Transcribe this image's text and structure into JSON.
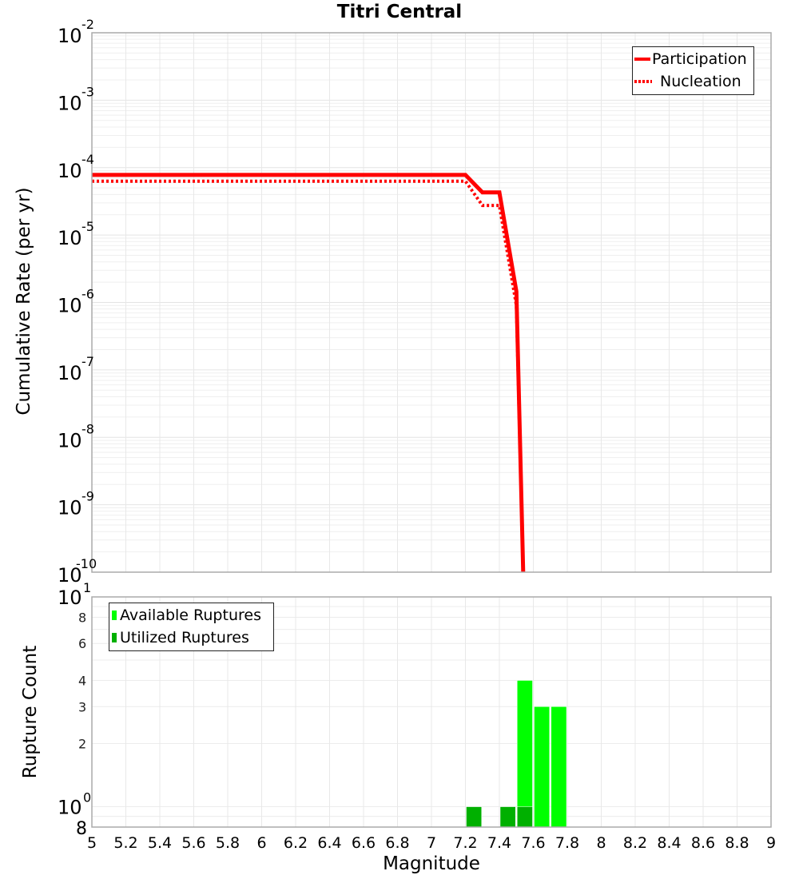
{
  "title": "Titri Central",
  "top_chart": {
    "ylabel": "Cumulative Rate (per yr)",
    "legend": [
      {
        "label": "Participation",
        "style": "solid",
        "color": "#ff0000"
      },
      {
        "label": "Nucleation",
        "style": "dotted",
        "color": "#ff0000"
      }
    ]
  },
  "bottom_chart": {
    "ylabel": "Rupture Count",
    "legend": [
      {
        "label": "Available Ruptures",
        "color": "#00ff00"
      },
      {
        "label": "Utilized Ruptures",
        "color": "#00b000"
      }
    ]
  },
  "xlabel": "Magnitude",
  "chart_data": [
    {
      "type": "line",
      "title": "Titri Central",
      "xlabel": "Magnitude",
      "ylabel": "Cumulative Rate (per yr)",
      "xlim": [
        5,
        9
      ],
      "ylim": [
        1e-10,
        0.01
      ],
      "yscale": "log",
      "grid": true,
      "legend_position": "top-right",
      "x_ticks": [
        "5",
        "5.2",
        "5.4",
        "5.6",
        "5.8",
        "6",
        "6.2",
        "6.4",
        "6.6",
        "6.8",
        "7",
        "7.2",
        "7.4",
        "7.6",
        "7.8",
        "8",
        "8.2",
        "8.4",
        "8.6",
        "8.8",
        "9"
      ],
      "y_ticks": [
        "10^-2",
        "10^-3",
        "10^-4",
        "10^-5",
        "10^-6",
        "10^-7",
        "10^-8",
        "10^-9",
        "10^-10"
      ],
      "series": [
        {
          "name": "Participation",
          "style": "solid",
          "color": "#ff0000",
          "x": [
            5.0,
            7.2,
            7.3,
            7.4,
            7.5,
            7.54
          ],
          "y": [
            7.8e-05,
            7.8e-05,
            4.3e-05,
            4.3e-05,
            1.45e-06,
            1e-10
          ]
        },
        {
          "name": "Nucleation",
          "style": "dotted",
          "color": "#ff0000",
          "x": [
            5.0,
            7.2,
            7.3,
            7.4,
            7.5,
            7.54
          ],
          "y": [
            6.3e-05,
            6.3e-05,
            2.75e-05,
            2.75e-05,
            9e-07,
            1e-10
          ]
        }
      ]
    },
    {
      "type": "bar",
      "xlabel": "Magnitude",
      "ylabel": "Rupture Count",
      "xlim": [
        5,
        9
      ],
      "ylim": [
        0.8,
        10
      ],
      "yscale": "log",
      "grid": true,
      "legend_position": "top-left",
      "y_ticks": [
        "8 (0.8)",
        "10^0",
        "2",
        "3",
        "4",
        "6",
        "8",
        "10^1"
      ],
      "bin_width": 0.1,
      "series": [
        {
          "name": "Available Ruptures",
          "color": "#00ff00",
          "x": [
            7.55,
            7.65,
            7.75
          ],
          "values": [
            4,
            3,
            3
          ]
        },
        {
          "name": "Utilized Ruptures",
          "color": "#00b000",
          "x": [
            7.25,
            7.45,
            7.55
          ],
          "values": [
            1,
            1,
            1
          ]
        }
      ]
    }
  ]
}
